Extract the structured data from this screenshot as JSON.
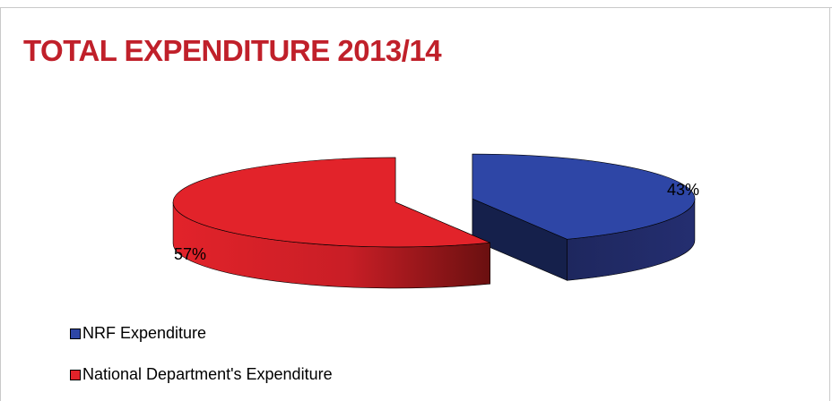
{
  "chart_data": {
    "type": "pie",
    "style": "3d-exploded",
    "title": "TOTAL EXPENDITURE 2013/14",
    "series": [
      {
        "name": "NRF Expenditure",
        "value": 43,
        "label": "43%",
        "color": "#2e46a6"
      },
      {
        "name": "National Department's Expenditure",
        "value": 57,
        "label": "57%",
        "color": "#e2232a"
      }
    ],
    "legend_position": "bottom-left"
  }
}
